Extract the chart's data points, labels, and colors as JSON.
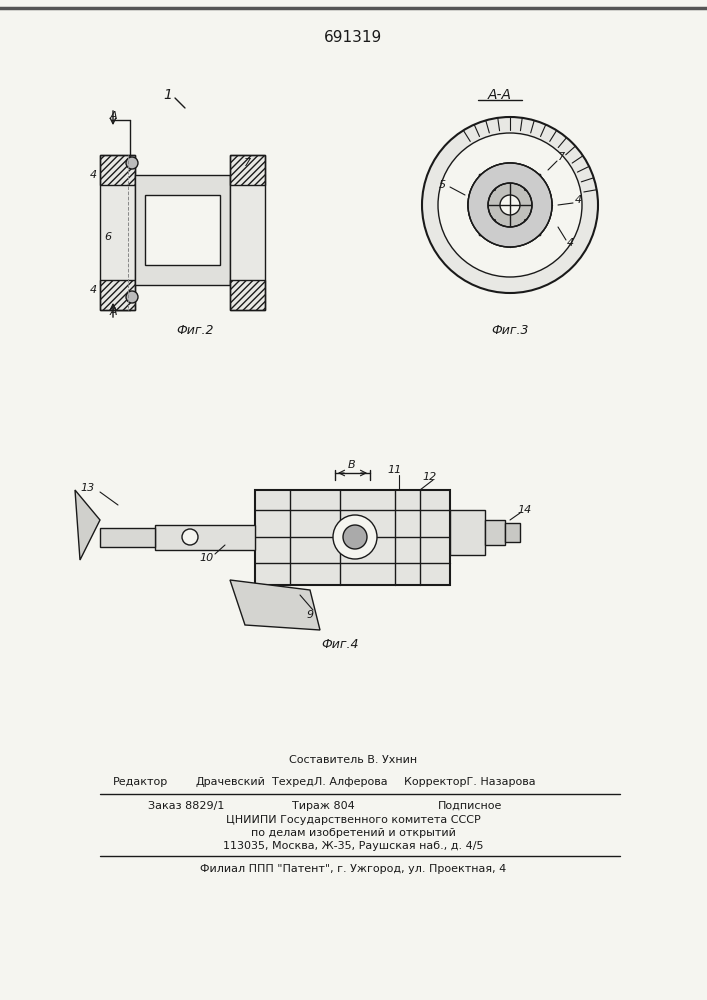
{
  "patent_number": "691319",
  "bg_color": "#f5f5f0",
  "line_color": "#1a1a1a",
  "hatch_color": "#1a1a1a",
  "top_line_color": "#333333",
  "footer": {
    "composer": "Составитель В. Ухнин",
    "editor_label": "Редактор",
    "editor": "Драчевский",
    "techred_label": "Техред",
    "techred": "Л. Алферова",
    "corrector_label": "Корректор",
    "corrector": "Г. Назарова",
    "order": "Заказ 8829/1",
    "tiraz": "Тираж 804",
    "podpisnoe": "Подписное",
    "org1": "ЦНИИПИ Государственного комитета СССР",
    "org2": "по делам изобретений и открытий",
    "org3": "113035, Москва, Ж-35, Раушская наб., д. 4/5",
    "filial": "Филиал ППП \"Патент\", г. Ужгород, ул. Проектная, 4"
  },
  "fig2_label": "Фиг.2",
  "fig3_label": "Фиг.3",
  "fig4_label": "Фиг.4",
  "fig1_label": "1",
  "aa_label": "А-А"
}
